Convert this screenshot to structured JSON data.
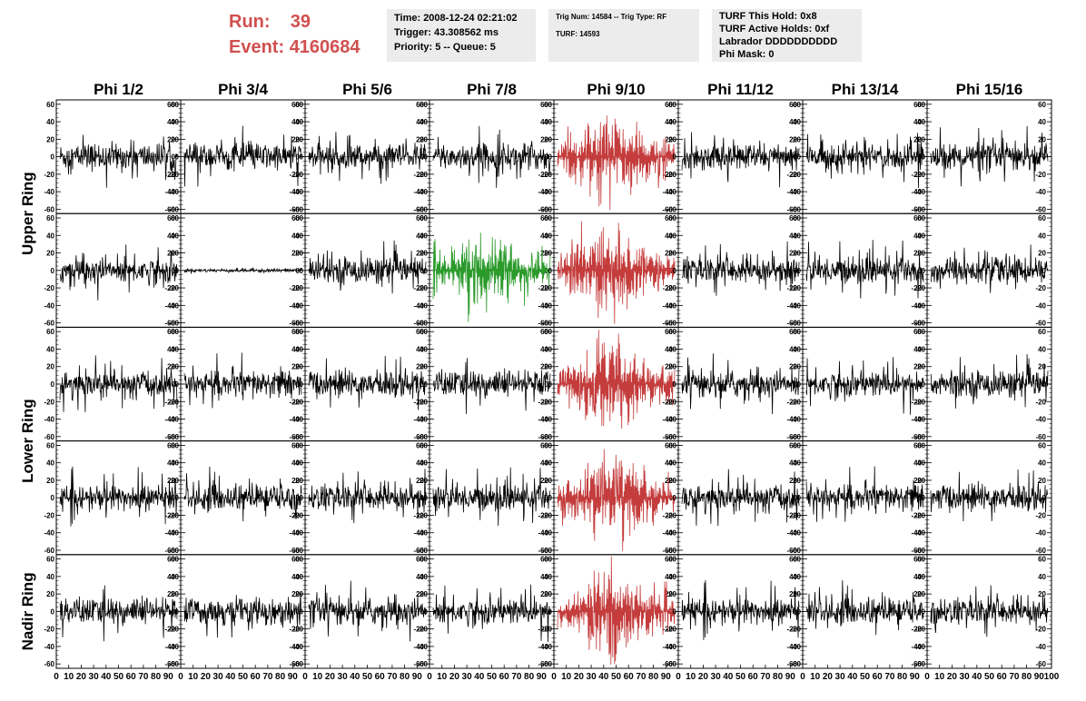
{
  "header": {
    "run_label": "Run:",
    "run_value": "39",
    "event_label": "Event:",
    "event_value": "4160684",
    "box1": [
      "Time: 2008-12-24 02:21:02",
      "Trigger: 43.308562 ms",
      "Priority: 5 -- Queue: 5"
    ],
    "box2": [
      "Trig Num: 14584 -- Trig Type: RF",
      "",
      "TURF: 14593"
    ],
    "box3": [
      "TURF This Hold: 0x8",
      "TURF Active Holds: 0xf",
      "Labrador DDDDDDDDDD",
      "Phi Mask: 0"
    ]
  },
  "colors": {
    "default_trace": "#000000",
    "highlight_red": "#c43c3c",
    "highlight_green": "#2a9a2a",
    "run_text": "#d0504f",
    "info_bg": "#ececec"
  },
  "chart_data": {
    "type": "line",
    "columns": [
      "Phi 1/2",
      "Phi 3/4",
      "Phi 5/6",
      "Phi 7/8",
      "Phi 9/10",
      "Phi 11/12",
      "Phi 13/14",
      "Phi 15/16"
    ],
    "rows": [
      "Upper Ring",
      "Lower Ring",
      "Nadir Ring"
    ],
    "row_label_spans": [
      2,
      2,
      1
    ],
    "ylim": [
      -65,
      65
    ],
    "y_ticks": [
      -60,
      -40,
      -20,
      0,
      20,
      40,
      60
    ],
    "xlim": [
      0,
      100
    ],
    "x_tick_labels": [
      "0",
      "10",
      "20",
      "30",
      "40",
      "50",
      "60",
      "70",
      "80",
      "90",
      "100"
    ],
    "panels_rows": 5,
    "trace": {
      "n_points": 260,
      "noise_amplitude": 14,
      "spike_amplitude": 30,
      "quiet_panel_amplitude": 2,
      "highlight_red_amplitude": 32,
      "highlight_green_amplitude": 28
    },
    "highlight": [
      {
        "row": 0,
        "col": 4,
        "color": "red"
      },
      {
        "row": 1,
        "col": 3,
        "color": "green"
      },
      {
        "row": 1,
        "col": 4,
        "color": "red"
      },
      {
        "row": 2,
        "col": 4,
        "color": "red"
      },
      {
        "row": 3,
        "col": 4,
        "color": "red"
      },
      {
        "row": 4,
        "col": 4,
        "color": "red"
      }
    ],
    "quiet_panels": [
      {
        "row": 1,
        "col": 1
      }
    ]
  }
}
